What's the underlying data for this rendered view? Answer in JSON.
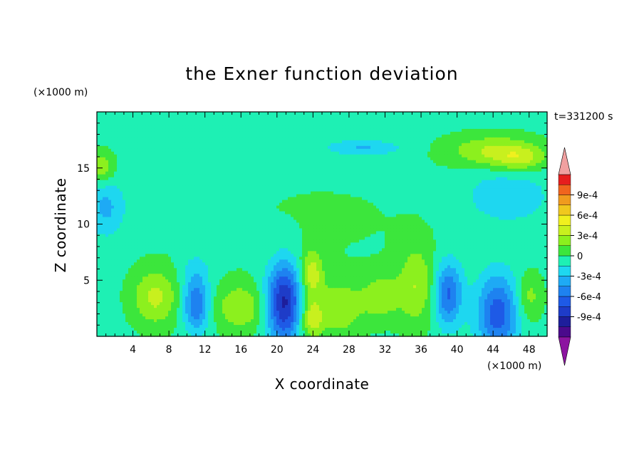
{
  "chart_data": {
    "type": "heatmap",
    "title": "the Exner function deviation",
    "xlabel": "X coordinate",
    "ylabel": "Z coordinate",
    "x_unit": "(×1000 m)",
    "y_unit": "(×1000 m)",
    "time_label": "t=331200 s",
    "xlim": [
      0,
      50
    ],
    "ylim": [
      0,
      20
    ],
    "x_ticks": [
      4,
      8,
      12,
      16,
      20,
      24,
      28,
      32,
      36,
      40,
      44,
      48
    ],
    "y_ticks": [
      5,
      10,
      15
    ],
    "colorbar": {
      "levels": [
        -0.0012,
        -0.00105,
        -0.0009,
        -0.00075,
        -0.0006,
        -0.00045,
        -0.0003,
        -0.00015,
        0,
        0.00015,
        0.0003,
        0.00045,
        0.0006,
        0.00075,
        0.0009,
        0.00105,
        0.0012
      ],
      "colors": [
        "#4b0a8c",
        "#1e1e9b",
        "#1e3cc8",
        "#1e5ae6",
        "#1e82f0",
        "#1eaaf5",
        "#1ed7f0",
        "#1ef0b4",
        "#3ce63c",
        "#8cf01e",
        "#c8f01e",
        "#f0f01e",
        "#f0c81e",
        "#f09b1e",
        "#f0641e",
        "#e61e1e"
      ],
      "tick_values": [
        0.0009,
        0.0006,
        0.0003,
        0,
        -0.0003,
        -0.0006,
        -0.0009
      ],
      "tick_labels": [
        "9e-4",
        "6e-4",
        "3e-4",
        "0",
        "-3e-4",
        "-6e-4",
        "-9e-4"
      ],
      "over_color": "#f0a0a0",
      "under_color": "#8c14a0"
    },
    "features": [
      {
        "x": 0.5,
        "z": 15.0,
        "sx": 1.0,
        "sz": 1.0,
        "value": 0.00033
      },
      {
        "x": 1.0,
        "z": 11.5,
        "sx": 1.5,
        "sz": 1.8,
        "value": -0.0003
      },
      {
        "x": 29.5,
        "z": 16.8,
        "sx": 3.0,
        "sz": 0.5,
        "value": -0.00028
      },
      {
        "x": 44.0,
        "z": 16.5,
        "sx": 3.5,
        "sz": 1.0,
        "value": 0.00036
      },
      {
        "x": 47.0,
        "z": 15.8,
        "sx": 2.0,
        "sz": 0.8,
        "value": 0.0003
      },
      {
        "x": 45.5,
        "z": 12.5,
        "sx": 3.5,
        "sz": 1.8,
        "value": -0.00022
      },
      {
        "x": 6.5,
        "z": 3.5,
        "sx": 1.8,
        "sz": 1.8,
        "value": 0.00038
      },
      {
        "x": 11.0,
        "z": 2.6,
        "sx": 1.0,
        "sz": 1.5,
        "value": -0.00055
      },
      {
        "x": 11.0,
        "z": 5.5,
        "sx": 1.2,
        "sz": 1.5,
        "value": -0.0002
      },
      {
        "x": 16.0,
        "z": 2.6,
        "sx": 2.0,
        "sz": 1.5,
        "value": 0.00033
      },
      {
        "x": 20.8,
        "z": 3.0,
        "sx": 1.4,
        "sz": 2.5,
        "value": -0.0009
      },
      {
        "x": 23.8,
        "z": 5.5,
        "sx": 0.9,
        "sz": 1.5,
        "value": 0.00045
      },
      {
        "x": 23.8,
        "z": 1.5,
        "sx": 0.9,
        "sz": 1.2,
        "value": 0.00045
      },
      {
        "x": 27.0,
        "z": 2.5,
        "sx": 1.8,
        "sz": 1.8,
        "value": 0.0003
      },
      {
        "x": 31.5,
        "z": 3.5,
        "sx": 1.5,
        "sz": 1.5,
        "value": 0.00028
      },
      {
        "x": 35.5,
        "z": 4.5,
        "sx": 1.5,
        "sz": 2.5,
        "value": 0.00033
      },
      {
        "x": 39.0,
        "z": 3.8,
        "sx": 1.1,
        "sz": 2.0,
        "value": -0.0006
      },
      {
        "x": 44.5,
        "z": 2.0,
        "sx": 1.6,
        "sz": 2.5,
        "value": -0.00065
      },
      {
        "x": 48.0,
        "z": 3.5,
        "sx": 1.0,
        "sz": 1.5,
        "value": 0.00025
      },
      {
        "x": 25.0,
        "z": 10.5,
        "sx": 10.0,
        "sz": 3.5,
        "value": 5e-05
      }
    ],
    "background_value": -4e-05,
    "grid": false
  }
}
